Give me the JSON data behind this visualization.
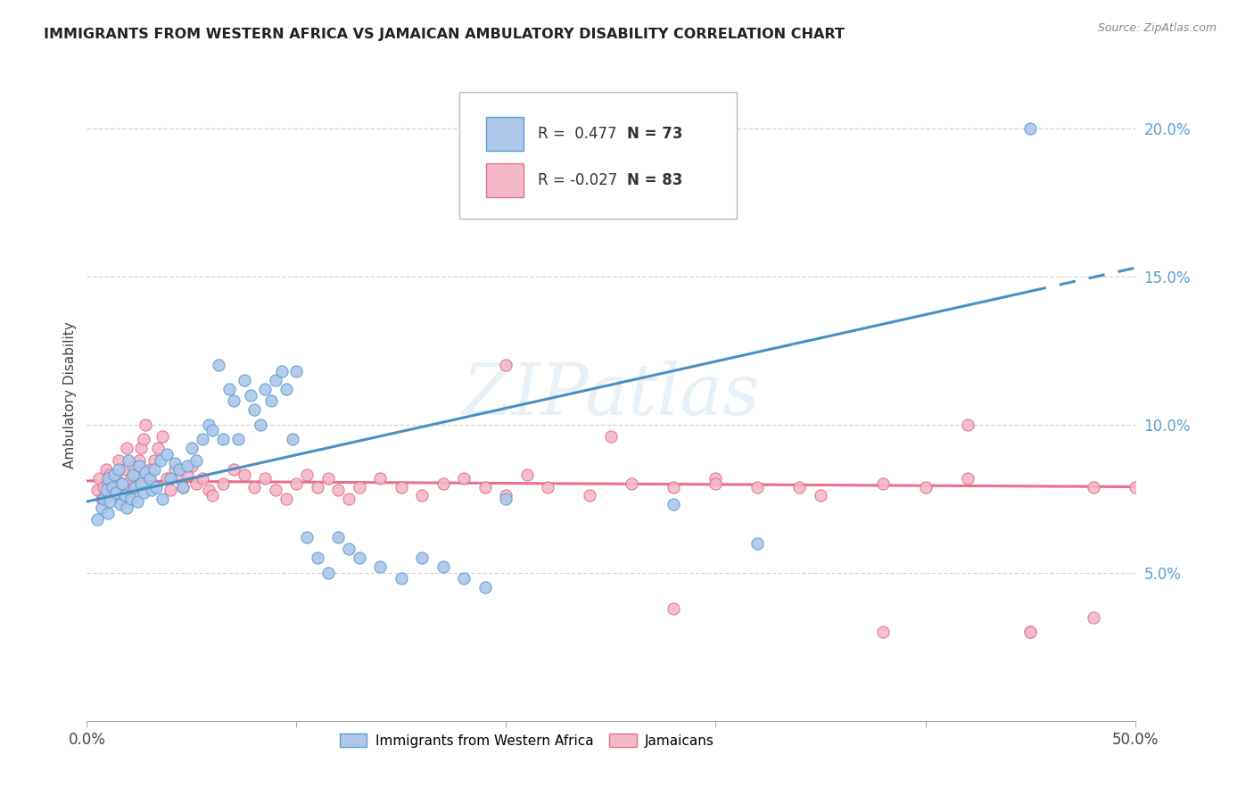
{
  "title": "IMMIGRANTS FROM WESTERN AFRICA VS JAMAICAN AMBULATORY DISABILITY CORRELATION CHART",
  "source": "Source: ZipAtlas.com",
  "ylabel": "Ambulatory Disability",
  "xlim": [
    0,
    0.5
  ],
  "ylim": [
    0.0,
    0.22
  ],
  "blue_R": 0.477,
  "blue_N": 73,
  "pink_R": -0.027,
  "pink_N": 83,
  "blue_fill": "#aec6e8",
  "blue_edge": "#5a9fd4",
  "pink_fill": "#f4b8c8",
  "pink_edge": "#e07090",
  "blue_line": "#4a90c4",
  "pink_line": "#e8708a",
  "legend_label_blue": "Immigrants from Western Africa",
  "legend_label_pink": "Jamaicans",
  "watermark": "ZIPatlas",
  "blue_line_start_x": 0.0,
  "blue_line_start_y": 0.074,
  "blue_line_end_x": 0.45,
  "blue_line_end_y": 0.145,
  "blue_line_solid_end_x": 0.45,
  "pink_line_start_x": 0.0,
  "pink_line_start_y": 0.081,
  "pink_line_end_x": 0.5,
  "pink_line_end_y": 0.079,
  "blue_scatter_x": [
    0.005,
    0.007,
    0.008,
    0.009,
    0.01,
    0.01,
    0.011,
    0.012,
    0.013,
    0.014,
    0.015,
    0.016,
    0.017,
    0.018,
    0.019,
    0.02,
    0.021,
    0.022,
    0.023,
    0.024,
    0.025,
    0.026,
    0.027,
    0.028,
    0.03,
    0.031,
    0.032,
    0.033,
    0.035,
    0.036,
    0.038,
    0.04,
    0.042,
    0.044,
    0.046,
    0.048,
    0.05,
    0.052,
    0.055,
    0.058,
    0.06,
    0.063,
    0.065,
    0.068,
    0.07,
    0.072,
    0.075,
    0.078,
    0.08,
    0.083,
    0.085,
    0.088,
    0.09,
    0.093,
    0.095,
    0.098,
    0.1,
    0.105,
    0.11,
    0.115,
    0.12,
    0.125,
    0.13,
    0.14,
    0.15,
    0.16,
    0.17,
    0.18,
    0.19,
    0.2,
    0.28,
    0.32,
    0.45
  ],
  "blue_scatter_y": [
    0.068,
    0.072,
    0.075,
    0.078,
    0.082,
    0.07,
    0.074,
    0.079,
    0.083,
    0.077,
    0.085,
    0.073,
    0.08,
    0.076,
    0.072,
    0.088,
    0.075,
    0.083,
    0.079,
    0.074,
    0.086,
    0.08,
    0.077,
    0.084,
    0.082,
    0.078,
    0.085,
    0.079,
    0.088,
    0.075,
    0.09,
    0.082,
    0.087,
    0.085,
    0.079,
    0.086,
    0.092,
    0.088,
    0.095,
    0.1,
    0.098,
    0.12,
    0.095,
    0.112,
    0.108,
    0.095,
    0.115,
    0.11,
    0.105,
    0.1,
    0.112,
    0.108,
    0.115,
    0.118,
    0.112,
    0.095,
    0.118,
    0.062,
    0.055,
    0.05,
    0.062,
    0.058,
    0.055,
    0.052,
    0.048,
    0.055,
    0.052,
    0.048,
    0.045,
    0.075,
    0.073,
    0.06,
    0.2
  ],
  "pink_scatter_x": [
    0.005,
    0.006,
    0.007,
    0.008,
    0.009,
    0.01,
    0.011,
    0.012,
    0.013,
    0.014,
    0.015,
    0.016,
    0.017,
    0.018,
    0.019,
    0.02,
    0.021,
    0.022,
    0.023,
    0.024,
    0.025,
    0.026,
    0.027,
    0.028,
    0.03,
    0.032,
    0.034,
    0.036,
    0.038,
    0.04,
    0.042,
    0.044,
    0.046,
    0.048,
    0.05,
    0.052,
    0.055,
    0.058,
    0.06,
    0.065,
    0.07,
    0.075,
    0.08,
    0.085,
    0.09,
    0.095,
    0.1,
    0.105,
    0.11,
    0.115,
    0.12,
    0.125,
    0.13,
    0.14,
    0.15,
    0.16,
    0.17,
    0.18,
    0.19,
    0.2,
    0.21,
    0.22,
    0.24,
    0.26,
    0.28,
    0.3,
    0.32,
    0.35,
    0.38,
    0.4,
    0.42,
    0.45,
    0.48,
    0.5,
    0.2,
    0.25,
    0.3,
    0.34,
    0.38,
    0.42,
    0.28,
    0.45,
    0.48
  ],
  "pink_scatter_y": [
    0.078,
    0.082,
    0.075,
    0.079,
    0.085,
    0.08,
    0.083,
    0.078,
    0.076,
    0.082,
    0.088,
    0.075,
    0.08,
    0.085,
    0.092,
    0.078,
    0.082,
    0.086,
    0.079,
    0.083,
    0.088,
    0.092,
    0.095,
    0.1,
    0.085,
    0.088,
    0.092,
    0.096,
    0.082,
    0.078,
    0.085,
    0.082,
    0.079,
    0.083,
    0.086,
    0.08,
    0.082,
    0.078,
    0.076,
    0.08,
    0.085,
    0.083,
    0.079,
    0.082,
    0.078,
    0.075,
    0.08,
    0.083,
    0.079,
    0.082,
    0.078,
    0.075,
    0.079,
    0.082,
    0.079,
    0.076,
    0.08,
    0.082,
    0.079,
    0.076,
    0.083,
    0.079,
    0.076,
    0.08,
    0.079,
    0.082,
    0.079,
    0.076,
    0.08,
    0.079,
    0.082,
    0.03,
    0.079,
    0.079,
    0.12,
    0.096,
    0.08,
    0.079,
    0.03,
    0.1,
    0.038,
    0.03,
    0.035
  ]
}
